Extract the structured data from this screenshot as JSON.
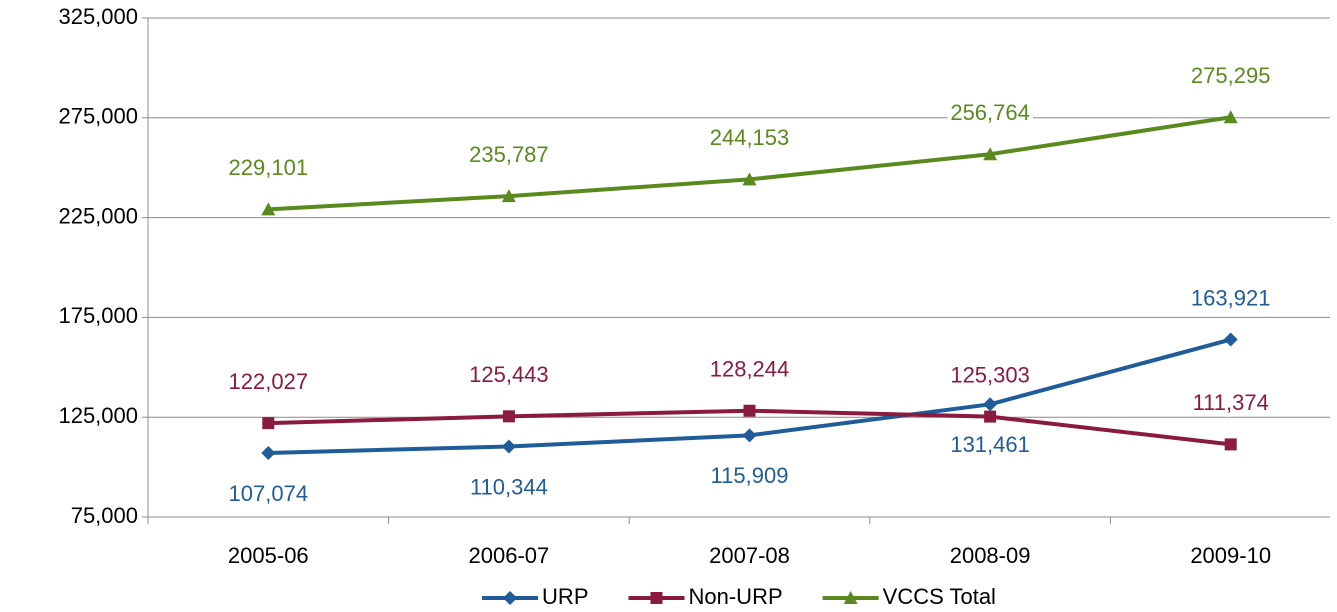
{
  "chart_data": {
    "type": "line",
    "categories": [
      "2005-06",
      "2006-07",
      "2007-08",
      "2008-09",
      "2009-10"
    ],
    "series": [
      {
        "name": "URP",
        "color": "#1f5c99",
        "marker": "diamond",
        "values": [
          107074,
          110344,
          115909,
          131461,
          163921
        ],
        "value_labels": [
          "107,074",
          "110,344",
          "115,909",
          "131,461",
          "163,921"
        ]
      },
      {
        "name": "Non-URP",
        "color": "#8b1a3f",
        "marker": "square",
        "values": [
          122027,
          125443,
          128244,
          125303,
          111374
        ],
        "value_labels": [
          "122,027",
          "125,443",
          "128,244",
          "125,303",
          "111,374"
        ]
      },
      {
        "name": "VCCS Total",
        "color": "#5a8a1e",
        "marker": "triangle",
        "values": [
          229101,
          235787,
          244153,
          256764,
          275295
        ],
        "value_labels": [
          "229,101",
          "235,787",
          "244,153",
          "256,764",
          "275,295"
        ]
      }
    ],
    "ylim": [
      75000,
      325000
    ],
    "yticks": [
      {
        "value": 75000,
        "label": "75,000"
      },
      {
        "value": 125000,
        "label": "125,000"
      },
      {
        "value": 175000,
        "label": "175,000"
      },
      {
        "value": 225000,
        "label": "225,000"
      },
      {
        "value": 275000,
        "label": "275,000"
      },
      {
        "value": 325000,
        "label": "325,000"
      }
    ],
    "grid": true,
    "legend": "bottom"
  }
}
